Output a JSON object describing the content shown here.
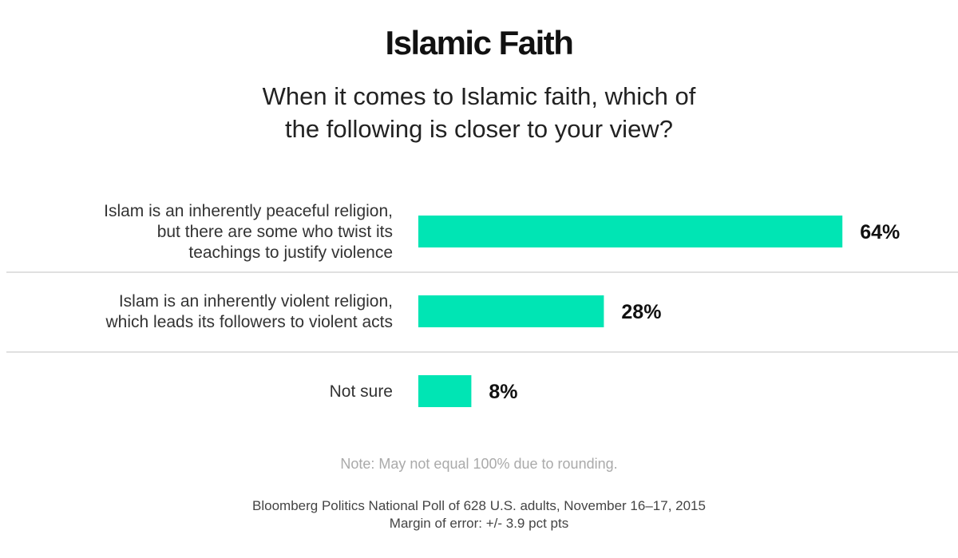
{
  "title": "Islamic Faith",
  "subtitle_lines": [
    "When it comes to Islamic faith, which of",
    "the following is closer to your view?"
  ],
  "colors": {
    "bar": "#00e5b4",
    "divider": "#e0e0e0"
  },
  "chart_data": {
    "type": "bar",
    "orientation": "horizontal",
    "categories": [
      [
        "Islam is an inherently peaceful religion,",
        "but there are some who twist its",
        "teachings to justify violence"
      ],
      [
        "Islam is an inherently violent religion,",
        "which leads its followers to violent acts"
      ],
      [
        "Not sure"
      ]
    ],
    "values": [
      64,
      28,
      8
    ],
    "value_labels": [
      "64%",
      "28%",
      "8%"
    ],
    "unit": "%",
    "xlim": [
      0,
      100
    ],
    "grid": false,
    "legend": "none"
  },
  "note": "Note: May not equal 100% due to rounding.",
  "source_lines": [
    "Bloomberg Politics National Poll of 628 U.S. adults, November 16–17, 2015",
    "Margin of error: +/- 3.9 pct pts"
  ]
}
